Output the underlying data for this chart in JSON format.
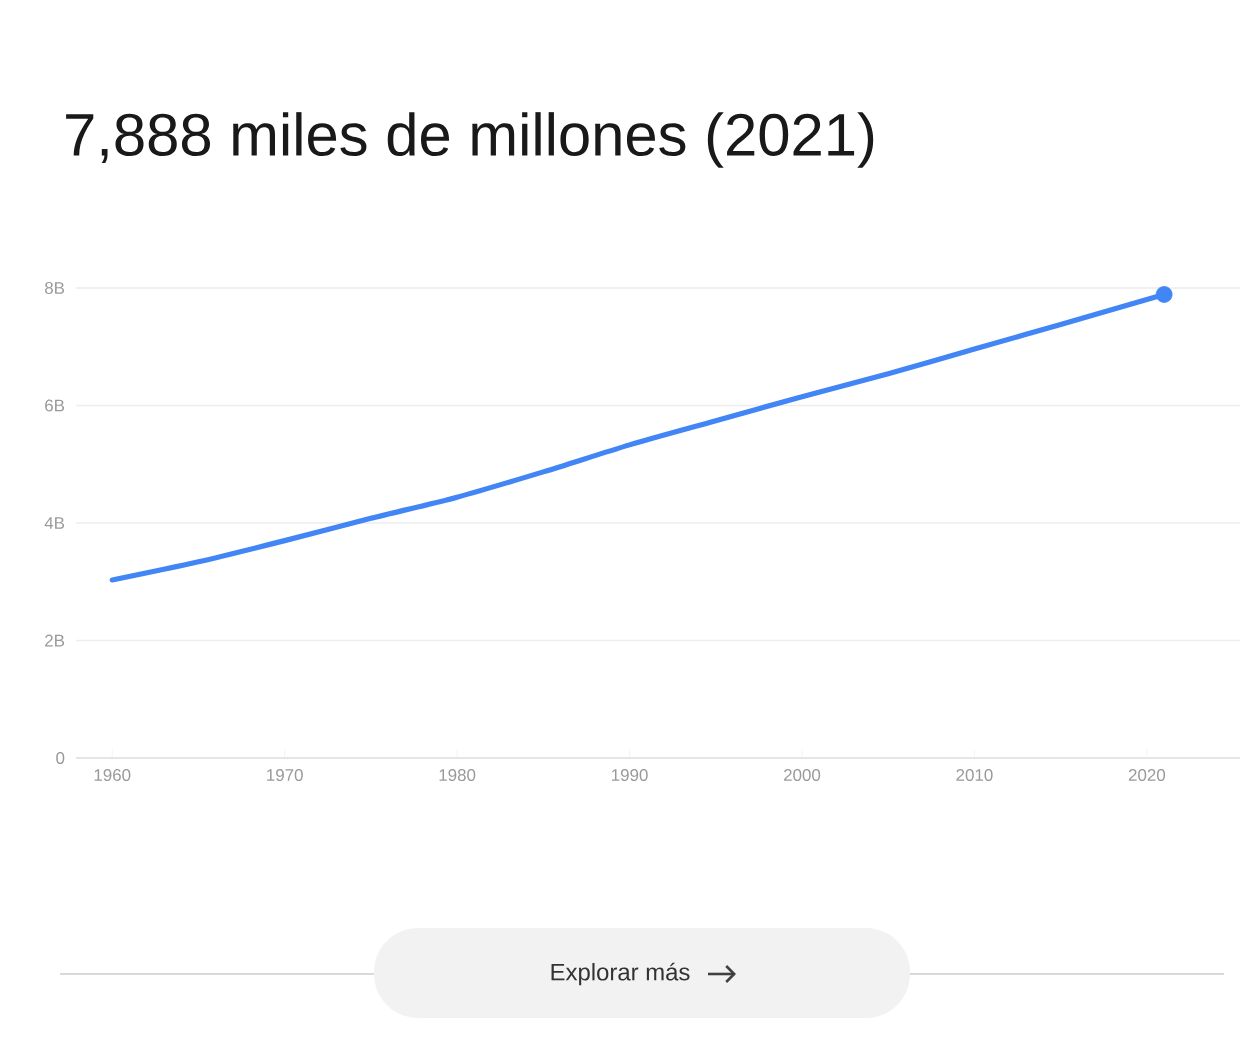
{
  "chart_data": {
    "type": "line",
    "title": "7,888 miles de millones (2021)",
    "x": [
      1960,
      1965,
      1970,
      1975,
      1980,
      1985,
      1990,
      1995,
      2000,
      2005,
      2010,
      2015,
      2021
    ],
    "series": [
      {
        "color": "#4285f4",
        "values": [
          3.03,
          3.34,
          3.7,
          4.08,
          4.44,
          4.87,
          5.33,
          5.74,
          6.15,
          6.54,
          6.96,
          7.38,
          7.89
        ]
      },
      {
        "type": "scatter",
        "color": "#4285f4",
        "x": [
          2021
        ],
        "values": [
          7.89
        ]
      }
    ],
    "xlim": [
      1957.9,
      2025.4
    ],
    "ylim": [
      0,
      8
    ],
    "xticks": [
      1960,
      1970,
      1980,
      1990,
      2000,
      2010,
      2020
    ],
    "yticks": [
      0,
      {
        "value": 2,
        "label": "2B"
      },
      {
        "value": 4,
        "label": "4B"
      },
      {
        "value": 6,
        "label": "6B"
      },
      {
        "value": 8,
        "label": "8B"
      }
    ],
    "grid": "y",
    "annotations": [
      "Explorar más"
    ]
  }
}
